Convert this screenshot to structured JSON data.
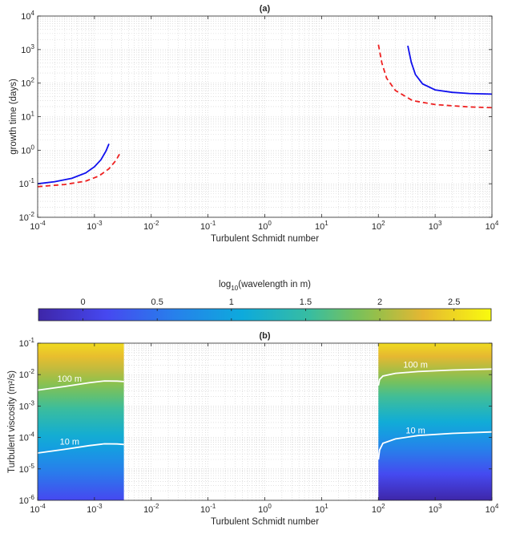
{
  "chart_data": [
    {
      "type": "line",
      "title": "(a)",
      "xlabel": "Turbulent Schmidt number",
      "ylabel": "growth time (days)",
      "xscale": "log",
      "yscale": "log",
      "xlim": [
        0.0001,
        10000
      ],
      "ylim": [
        0.01,
        10000
      ],
      "grid": true,
      "x_ticks": [
        "10^-4",
        "10^-3",
        "10^-2",
        "10^-1",
        "10^0",
        "10^1",
        "10^2",
        "10^3",
        "10^4"
      ],
      "y_ticks": [
        "10^-2",
        "10^-1",
        "10^0",
        "10^1",
        "10^2",
        "10^3",
        "10^4"
      ],
      "series": [
        {
          "color": "#1010ee",
          "style": "solid",
          "segments": [
            {
              "x": [
                0.0001,
                0.0002,
                0.0004,
                0.0007,
                0.001,
                0.0013,
                0.0016,
                0.0018
              ],
              "y": [
                0.1,
                0.115,
                0.145,
                0.21,
                0.32,
                0.52,
                0.95,
                1.55
              ]
            },
            {
              "x": [
                330,
                380,
                450,
                600,
                1000,
                2000,
                4000,
                10000
              ],
              "y": [
                1300,
                420,
                180,
                95,
                63,
                53,
                49,
                47
              ]
            }
          ]
        },
        {
          "color": "#ee2020",
          "style": "dashed",
          "segments": [
            {
              "x": [
                0.0001,
                0.0003,
                0.0007,
                0.0012,
                0.0018,
                0.0024,
                0.0028
              ],
              "y": [
                0.082,
                0.095,
                0.12,
                0.17,
                0.28,
                0.5,
                0.8
              ]
            },
            {
              "x": [
                100,
                115,
                140,
                200,
                400,
                1000,
                4000,
                10000
              ],
              "y": [
                1400,
                400,
                140,
                60,
                30,
                23,
                19.5,
                18.5
              ]
            }
          ]
        }
      ]
    },
    {
      "type": "heatmap",
      "title": "(b)",
      "xlabel": "Turbulent Schmidt number",
      "ylabel": "Turbulent viscosity (m²/s)",
      "xscale": "log",
      "yscale": "log",
      "xlim": [
        0.0001,
        10000
      ],
      "ylim": [
        1e-06,
        0.1
      ],
      "grid": true,
      "colorbar": {
        "label_base": "log",
        "label_sub": "10",
        "label_rest": "(wavelength in m)",
        "ticks": [
          "0",
          "0.5",
          "1",
          "1.5",
          "2",
          "2.5"
        ],
        "tick_values": [
          0,
          0.5,
          1,
          1.5,
          2,
          2.5
        ],
        "range": [
          -0.3,
          2.75
        ],
        "placement": "top"
      },
      "filled_regions_x": [
        [
          0.0001,
          0.0033
        ],
        [
          100,
          10000
        ]
      ],
      "contours": [
        {
          "label": "100 m",
          "color": "#ffffff",
          "segments": [
            {
              "x": [
                0.0001,
                0.0003,
                0.0008,
                0.0015,
                0.0025,
                0.0033
              ],
              "y": [
                0.0032,
                0.0042,
                0.0055,
                0.0063,
                0.0062,
                0.006
              ]
            },
            {
              "x": [
                100,
                105,
                120,
                200,
                500,
                2000,
                10000
              ],
              "y": [
                0.0045,
                0.007,
                0.009,
                0.011,
                0.0125,
                0.014,
                0.015
              ]
            }
          ]
        },
        {
          "label": "10 m",
          "color": "#ffffff",
          "segments": [
            {
              "x": [
                0.0001,
                0.0003,
                0.0008,
                0.0015,
                0.0025,
                0.0033
              ],
              "y": [
                3.2e-05,
                4.2e-05,
                5.5e-05,
                6.3e-05,
                6.2e-05,
                6e-05
              ]
            },
            {
              "x": [
                100,
                105,
                120,
                200,
                500,
                2000,
                10000
              ],
              "y": [
                2e-05,
                4e-05,
                6.5e-05,
                9e-05,
                0.000115,
                0.000135,
                0.00015
              ]
            }
          ]
        }
      ]
    }
  ]
}
